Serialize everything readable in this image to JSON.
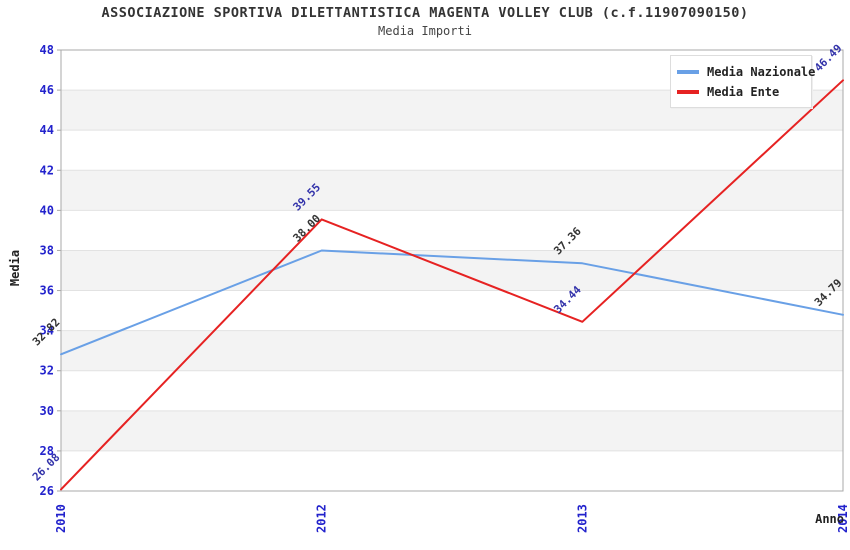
{
  "header": {
    "title": "ASSOCIAZIONE SPORTIVA DILETTANTISTICA MAGENTA VOLLEY CLUB (c.f.11907090150)",
    "subtitle": "Media Importi"
  },
  "chart_data": {
    "type": "line",
    "title": "ASSOCIAZIONE SPORTIVA DILETTANTISTICA MAGENTA VOLLEY CLUB (c.f.11907090150)",
    "subtitle": "Media Importi",
    "xlabel": "Anno",
    "ylabel": "Media",
    "categories": [
      "2010",
      "2012",
      "2013",
      "2014"
    ],
    "series": [
      {
        "name": "Media Nazionale",
        "color": "#69a0e6",
        "label_color": "#333333",
        "values": [
          32.82,
          38.0,
          37.36,
          34.79
        ]
      },
      {
        "name": "Media Ente",
        "color": "#e62222",
        "label_color": "#3333aa",
        "values": [
          26.08,
          39.55,
          34.44,
          46.49
        ]
      }
    ],
    "ylim": [
      26,
      48
    ],
    "ytick_step": 2,
    "grid": "horizontal-bands",
    "legend_position": "top-right",
    "colors": {
      "tick_label": "#2222cc",
      "band": "#f3f3f3",
      "gridline": "#e2e2e2",
      "frame": "#a9a9a9",
      "title": "#333333"
    }
  }
}
